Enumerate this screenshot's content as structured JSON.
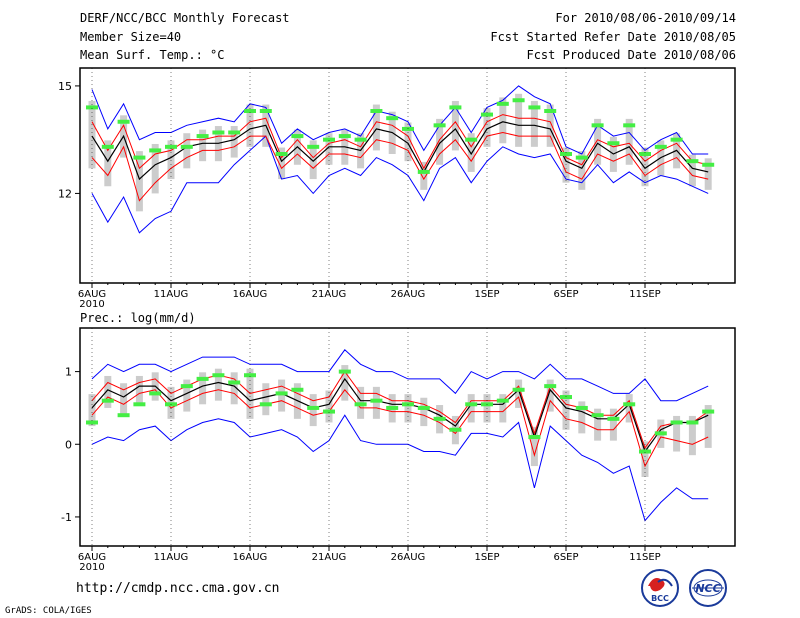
{
  "header": {
    "left_line1": "DERF/NCC/BCC Monthly Forecast",
    "left_line2": "Member Size=40",
    "right_line1": "For 2010/08/06-2010/09/14",
    "right_line2": "Fcst Started Refer Date 2010/08/05",
    "right_line3": "Fcst Produced Date 2010/08/06"
  },
  "footer": {
    "url": "http://cmdp.ncc.cma.gov.cn",
    "credit": "GrADS: COLA/IGES",
    "logo_left_text": "BCC",
    "logo_right_text": "NCC"
  },
  "colors": {
    "envelope": "#0000ff",
    "spread": "#ff0000",
    "mean": "#000000",
    "obs_bar": "#44ee44",
    "box": "#cccccc"
  },
  "chart_data": [
    {
      "type": "line",
      "title": "Mean Surf. Temp.: °C",
      "x_ticks": [
        "6AUG",
        "11AUG",
        "16AUG",
        "21AUG",
        "26AUG",
        "1SEP",
        "6SEP",
        "11SEP"
      ],
      "year_label": "2010",
      "y_ticks": [
        12,
        15
      ],
      "ylim": [
        9.5,
        15.5
      ],
      "x": [
        1,
        2,
        3,
        4,
        5,
        6,
        7,
        8,
        9,
        10,
        11,
        12,
        13,
        14,
        15,
        16,
        17,
        18,
        19,
        20,
        21,
        22,
        23,
        24,
        25,
        26,
        27,
        28,
        29,
        30,
        31,
        32,
        33,
        34,
        35,
        36,
        37,
        38,
        39,
        40
      ],
      "series": [
        {
          "name": "max",
          "values": [
            14.9,
            13.8,
            14.5,
            13.5,
            13.7,
            13.7,
            13.9,
            14.0,
            14.1,
            14.0,
            14.5,
            14.4,
            13.4,
            13.8,
            13.5,
            13.7,
            13.8,
            13.6,
            14.3,
            14.2,
            14.0,
            13.2,
            13.9,
            14.4,
            13.7,
            14.4,
            14.6,
            15.0,
            14.7,
            14.5,
            13.3,
            13.1,
            13.9,
            13.6,
            13.7,
            13.2,
            13.5,
            13.7,
            13.1,
            13.1
          ]
        },
        {
          "name": "upper",
          "values": [
            14.0,
            13.2,
            13.9,
            12.7,
            13.1,
            13.2,
            13.5,
            13.5,
            13.6,
            13.6,
            14.0,
            14.1,
            13.0,
            13.5,
            13.0,
            13.4,
            13.5,
            13.3,
            14.0,
            13.9,
            13.6,
            12.7,
            13.5,
            14.0,
            13.3,
            14.0,
            14.2,
            14.1,
            14.1,
            14.0,
            13.0,
            12.8,
            13.5,
            13.3,
            13.4,
            12.9,
            13.2,
            13.4,
            12.9,
            12.8
          ]
        },
        {
          "name": "mean",
          "values": [
            13.6,
            12.9,
            13.6,
            12.4,
            12.8,
            13.0,
            13.3,
            13.4,
            13.4,
            13.5,
            13.8,
            13.9,
            12.9,
            13.3,
            12.9,
            13.3,
            13.3,
            13.2,
            13.8,
            13.7,
            13.4,
            12.6,
            13.4,
            13.8,
            13.1,
            13.8,
            14.0,
            13.9,
            13.9,
            13.8,
            12.9,
            12.7,
            13.4,
            13.1,
            13.3,
            12.7,
            13.0,
            13.2,
            12.7,
            12.6
          ]
        },
        {
          "name": "lower",
          "values": [
            13.0,
            12.5,
            13.3,
            11.8,
            12.3,
            12.7,
            13.0,
            13.2,
            13.2,
            13.3,
            13.6,
            13.6,
            12.7,
            13.1,
            12.7,
            13.1,
            13.1,
            13.0,
            13.5,
            13.4,
            13.2,
            12.4,
            13.1,
            13.5,
            12.9,
            13.6,
            13.7,
            13.6,
            13.6,
            13.6,
            12.6,
            12.4,
            13.1,
            12.9,
            13.1,
            12.5,
            12.8,
            13.0,
            12.5,
            12.4
          ]
        },
        {
          "name": "min",
          "values": [
            12.0,
            11.2,
            11.9,
            10.9,
            11.3,
            11.5,
            12.3,
            12.3,
            12.3,
            12.8,
            13.2,
            13.6,
            12.4,
            12.5,
            12.0,
            12.5,
            12.7,
            12.5,
            13.0,
            12.8,
            12.5,
            11.8,
            12.7,
            13.0,
            12.3,
            12.9,
            13.3,
            13.1,
            13.0,
            13.1,
            12.4,
            12.3,
            12.8,
            12.3,
            12.6,
            12.3,
            12.5,
            12.4,
            12.2,
            12.0
          ]
        },
        {
          "name": "observed",
          "values": [
            14.4,
            13.3,
            14.0,
            13.0,
            13.2,
            13.3,
            13.3,
            13.6,
            13.7,
            13.7,
            14.3,
            14.3,
            13.1,
            13.6,
            13.3,
            13.5,
            13.6,
            13.5,
            14.3,
            14.1,
            13.8,
            12.6,
            13.9,
            14.4,
            13.5,
            14.2,
            14.5,
            14.6,
            14.4,
            14.3,
            13.1,
            13.0,
            13.9,
            13.4,
            13.9,
            13.1,
            13.3,
            13.5,
            12.9,
            12.8
          ]
        }
      ]
    },
    {
      "type": "line",
      "title": "Prec.: log(mm/d)",
      "x_ticks": [
        "6AUG",
        "11AUG",
        "16AUG",
        "21AUG",
        "26AUG",
        "1SEP",
        "6SEP",
        "11SEP"
      ],
      "year_label": "2010",
      "y_ticks": [
        -1,
        0,
        1
      ],
      "ylim": [
        -1.4,
        1.6
      ],
      "x": [
        1,
        2,
        3,
        4,
        5,
        6,
        7,
        8,
        9,
        10,
        11,
        12,
        13,
        14,
        15,
        16,
        17,
        18,
        19,
        20,
        21,
        22,
        23,
        24,
        25,
        26,
        27,
        28,
        29,
        30,
        31,
        32,
        33,
        34,
        35,
        36,
        37,
        38,
        39,
        40
      ],
      "series": [
        {
          "name": "max",
          "values": [
            0.9,
            1.1,
            1.0,
            1.1,
            1.1,
            1.0,
            1.1,
            1.2,
            1.2,
            1.2,
            1.1,
            1.1,
            1.1,
            1.0,
            1.0,
            1.0,
            1.3,
            1.1,
            1.0,
            1.0,
            0.9,
            0.9,
            0.9,
            0.7,
            1.0,
            0.9,
            1.0,
            1.0,
            0.9,
            1.1,
            0.9,
            0.9,
            0.8,
            0.7,
            0.7,
            0.9,
            0.6,
            0.6,
            0.7,
            0.8
          ]
        },
        {
          "name": "upper",
          "values": [
            0.6,
            0.85,
            0.75,
            0.85,
            0.9,
            0.7,
            0.8,
            0.9,
            0.95,
            0.9,
            0.7,
            0.75,
            0.8,
            0.7,
            0.6,
            0.65,
            1.0,
            0.7,
            0.7,
            0.6,
            0.6,
            0.55,
            0.45,
            0.3,
            0.6,
            0.6,
            0.6,
            0.8,
            0.15,
            0.8,
            0.55,
            0.5,
            0.4,
            0.4,
            0.6,
            -0.05,
            0.25,
            0.3,
            0.3,
            0.45
          ]
        },
        {
          "name": "mean",
          "values": [
            0.5,
            0.75,
            0.65,
            0.8,
            0.8,
            0.6,
            0.7,
            0.8,
            0.85,
            0.8,
            0.6,
            0.65,
            0.7,
            0.6,
            0.5,
            0.55,
            0.9,
            0.6,
            0.6,
            0.55,
            0.55,
            0.5,
            0.4,
            0.25,
            0.55,
            0.55,
            0.55,
            0.75,
            0.1,
            0.75,
            0.5,
            0.45,
            0.35,
            0.35,
            0.55,
            -0.1,
            0.2,
            0.3,
            0.3,
            0.4
          ]
        },
        {
          "name": "lower",
          "values": [
            0.4,
            0.65,
            0.55,
            0.7,
            0.75,
            0.5,
            0.6,
            0.7,
            0.75,
            0.7,
            0.5,
            0.55,
            0.6,
            0.5,
            0.4,
            0.45,
            0.75,
            0.5,
            0.5,
            0.45,
            0.45,
            0.4,
            0.3,
            0.15,
            0.45,
            0.45,
            0.45,
            0.65,
            -0.15,
            0.6,
            0.35,
            0.3,
            0.2,
            0.2,
            0.45,
            -0.3,
            0.1,
            0.05,
            0.0,
            0.1
          ]
        },
        {
          "name": "min",
          "values": [
            0.0,
            0.1,
            0.05,
            0.2,
            0.25,
            0.05,
            0.2,
            0.3,
            0.35,
            0.3,
            0.1,
            0.15,
            0.2,
            0.1,
            -0.1,
            0.05,
            0.4,
            0.05,
            0.0,
            0.0,
            0.0,
            -0.1,
            -0.1,
            -0.15,
            0.15,
            0.15,
            0.1,
            0.3,
            -0.6,
            0.25,
            0.05,
            -0.15,
            -0.25,
            -0.4,
            -0.3,
            -1.05,
            -0.8,
            -0.6,
            -0.75,
            -0.75
          ]
        },
        {
          "name": "observed",
          "values": [
            0.3,
            0.6,
            0.4,
            0.55,
            0.7,
            0.55,
            0.8,
            0.9,
            0.95,
            0.85,
            0.95,
            0.55,
            0.7,
            0.75,
            0.5,
            0.45,
            1.0,
            0.55,
            0.6,
            0.5,
            0.55,
            0.5,
            0.35,
            0.2,
            0.55,
            0.55,
            0.6,
            0.75,
            0.1,
            0.8,
            0.65,
            0.5,
            0.4,
            0.35,
            0.55,
            -0.1,
            0.15,
            0.3,
            0.3,
            0.45
          ]
        }
      ]
    }
  ]
}
